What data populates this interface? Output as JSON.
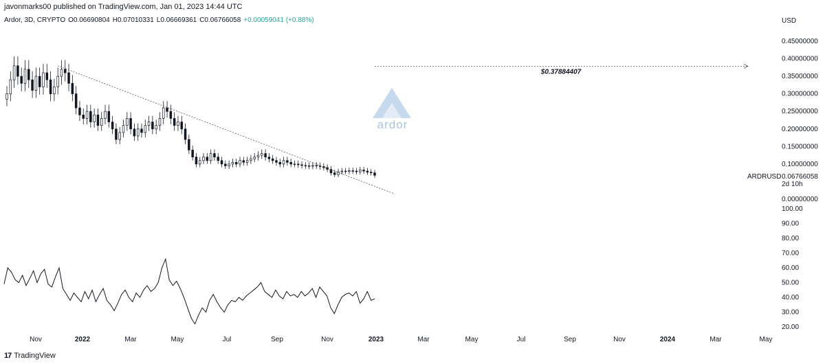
{
  "header": {
    "published": "javonmarks00 published on TradingView.com, Jan 01, 2023 14:44 UTC",
    "symbol_desc": "Ardor, 3D, CRYPTO",
    "open": "O0.06690804",
    "high": "H0.07010331",
    "low": "L0.06669361",
    "close": "C0.06766058",
    "change": "+0.00059041 (+0.88%)"
  },
  "price_axis": {
    "currency": "USD",
    "ticks": [
      "0.45000000",
      "0.40000000",
      "0.35000000",
      "0.30000000",
      "0.25000000",
      "0.20000000",
      "0.15000000",
      "0.10000000",
      "0.00000000"
    ],
    "tick_values": [
      0.45,
      0.4,
      0.35,
      0.3,
      0.25,
      0.2,
      0.15,
      0.1,
      0.0
    ],
    "symbol_label": "ARDRUSD",
    "last_price_label": "0.06766058",
    "countdown": "2d 10h"
  },
  "rsi_axis": {
    "ticks": [
      "100.00",
      "90.00",
      "80.00",
      "70.00",
      "60.00",
      "50.00",
      "40.00",
      "30.00",
      "20.00"
    ],
    "tick_values": [
      100,
      90,
      80,
      70,
      60,
      50,
      40,
      30,
      20
    ]
  },
  "time_axis": {
    "labels": [
      "Nov",
      "2022",
      "Mar",
      "May",
      "Jul",
      "Sep",
      "Nov",
      "2023",
      "Mar",
      "May",
      "Jul",
      "Sep",
      "Nov",
      "2024",
      "Mar",
      "May"
    ],
    "bold": [
      false,
      true,
      false,
      false,
      false,
      false,
      false,
      true,
      false,
      false,
      false,
      false,
      false,
      true,
      false,
      false
    ]
  },
  "target_label": "$0.37884407",
  "watermark": "ardor",
  "footer": {
    "brand": "TradingView",
    "logo_mark": "17"
  },
  "colors": {
    "text": "#131722",
    "candle": "#131722",
    "line": "#131722",
    "target_line": "#555555",
    "watermark": "#a9c4e0",
    "positive": "#26a69a"
  },
  "chart_data": {
    "type": "candlestick",
    "interval": "3D",
    "symbol": "ARDRUSD",
    "price_range": [
      0.0,
      0.45
    ],
    "series": [
      {
        "name": "Ardor",
        "type": "candlestick",
        "closes": [
          0.3,
          0.34,
          0.38,
          0.35,
          0.33,
          0.37,
          0.34,
          0.31,
          0.35,
          0.32,
          0.36,
          0.34,
          0.3,
          0.32,
          0.35,
          0.37,
          0.36,
          0.33,
          0.3,
          0.26,
          0.24,
          0.23,
          0.25,
          0.22,
          0.24,
          0.21,
          0.23,
          0.25,
          0.22,
          0.2,
          0.17,
          0.19,
          0.21,
          0.23,
          0.2,
          0.18,
          0.2,
          0.19,
          0.21,
          0.22,
          0.2,
          0.21,
          0.23,
          0.26,
          0.25,
          0.23,
          0.21,
          0.22,
          0.2,
          0.17,
          0.14,
          0.12,
          0.1,
          0.11,
          0.12,
          0.11,
          0.13,
          0.12,
          0.11,
          0.1,
          0.095,
          0.1,
          0.105,
          0.1,
          0.11,
          0.105,
          0.11,
          0.115,
          0.12,
          0.125,
          0.13,
          0.12,
          0.115,
          0.11,
          0.105,
          0.1,
          0.11,
          0.105,
          0.1,
          0.1,
          0.098,
          0.096,
          0.095,
          0.094,
          0.096,
          0.095,
          0.093,
          0.09,
          0.085,
          0.075,
          0.07,
          0.078,
          0.08,
          0.079,
          0.081,
          0.08,
          0.078,
          0.083,
          0.08,
          0.077,
          0.075,
          0.068
        ],
        "ohlc_last": [
          0.06690804,
          0.07010331,
          0.06669361,
          0.06766058
        ]
      },
      {
        "name": "RSI",
        "type": "line",
        "values": [
          49,
          60,
          57,
          52,
          50,
          55,
          48,
          53,
          58,
          50,
          56,
          59,
          49,
          47,
          54,
          60,
          46,
          42,
          38,
          43,
          40,
          37,
          44,
          39,
          45,
          37,
          42,
          46,
          38,
          35,
          31,
          36,
          42,
          45,
          40,
          37,
          43,
          40,
          45,
          48,
          44,
          46,
          50,
          60,
          66,
          52,
          48,
          51,
          46,
          40,
          33,
          26,
          22,
          28,
          33,
          30,
          38,
          42,
          37,
          33,
          30,
          35,
          38,
          37,
          40,
          38,
          41,
          43,
          45,
          47,
          50,
          44,
          42,
          40,
          45,
          41,
          39,
          44,
          41,
          42,
          40,
          44,
          41,
          43,
          46,
          40,
          47,
          44,
          41,
          33,
          29,
          35,
          40,
          42,
          43,
          41,
          44,
          36,
          39,
          44,
          38,
          39
        ]
      }
    ],
    "lines": [
      {
        "name": "descending trendline",
        "from_price": 0.38,
        "to_price": 0.015
      },
      {
        "name": "target",
        "price": 0.37884407
      }
    ]
  }
}
